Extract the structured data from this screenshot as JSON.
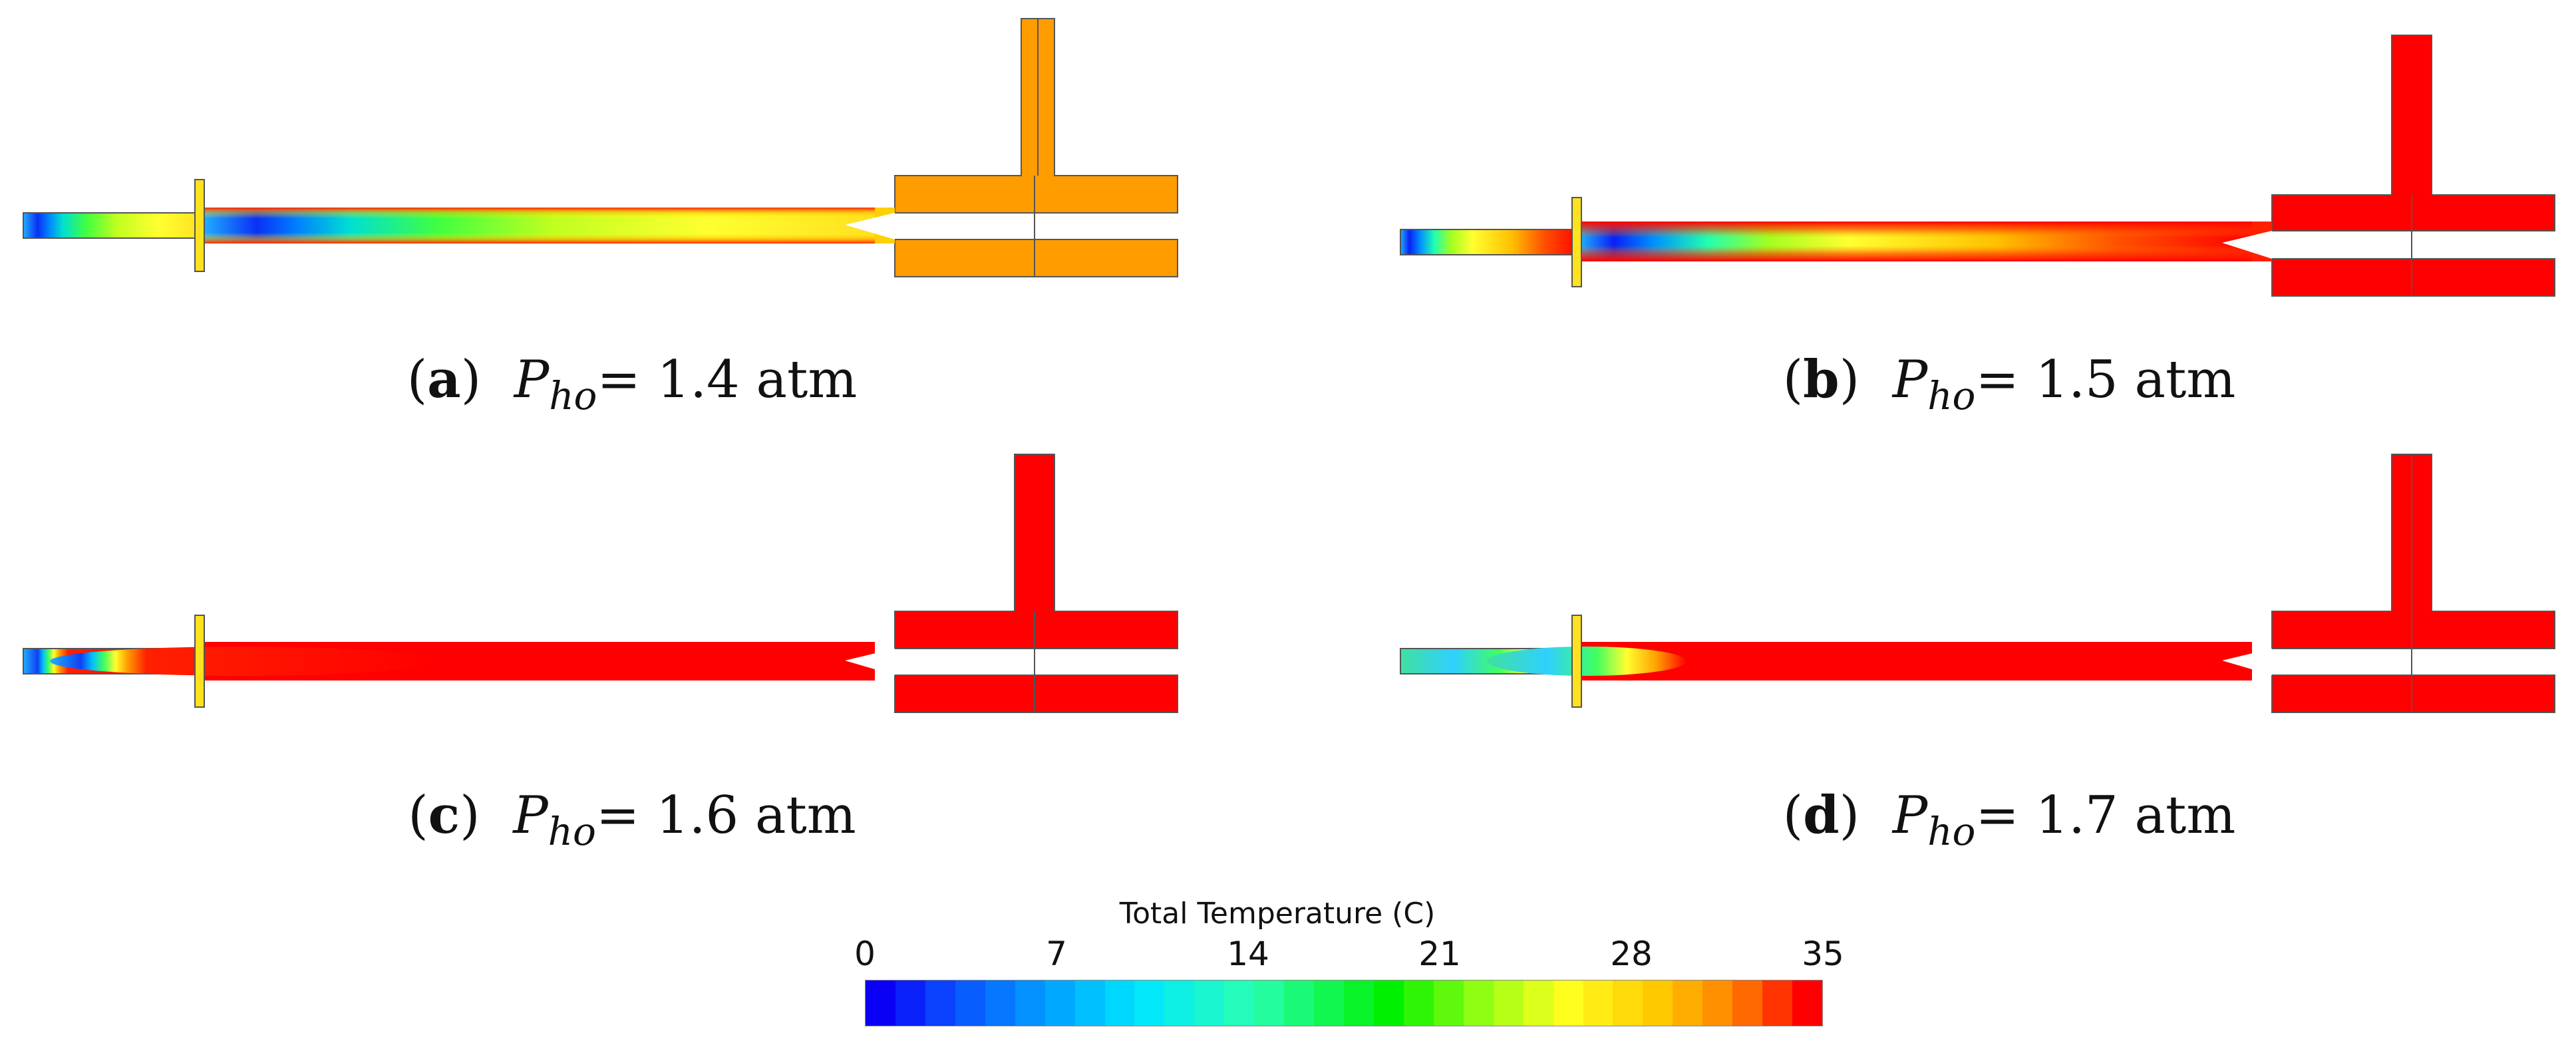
{
  "panels": [
    {
      "letter": "a",
      "open": "(",
      "close": ")",
      "p": "P",
      "sub": "ho",
      "eq": "= 1.4 atm",
      "inlet_hot_fraction": 0.0
    },
    {
      "letter": "b",
      "open": "(",
      "close": ")",
      "p": "P",
      "sub": "ho",
      "eq": "= 1.5 atm",
      "inlet_hot_fraction": 0.35
    },
    {
      "letter": "c",
      "open": "(",
      "close": ")",
      "p": "P",
      "sub": "ho",
      "eq": "= 1.6 atm",
      "inlet_hot_fraction": 0.7
    },
    {
      "letter": "d",
      "open": "(",
      "close": ")",
      "p": "P",
      "sub": "ho",
      "eq": "= 1.7 atm",
      "inlet_hot_fraction": 0.9
    }
  ],
  "legend": {
    "title": "Total Temperature (C)",
    "ticks": [
      "0",
      "7",
      "14",
      "21",
      "28",
      "35"
    ],
    "min": 0,
    "max": 35
  },
  "colors": {
    "cold": "#0a00f5",
    "mid": "#00ff00",
    "warm": "#ffff00",
    "hot": "#ff0000",
    "shell_a": "#ff9c00",
    "shell": "#ff0000",
    "nozzle": "#ffe21f"
  }
}
